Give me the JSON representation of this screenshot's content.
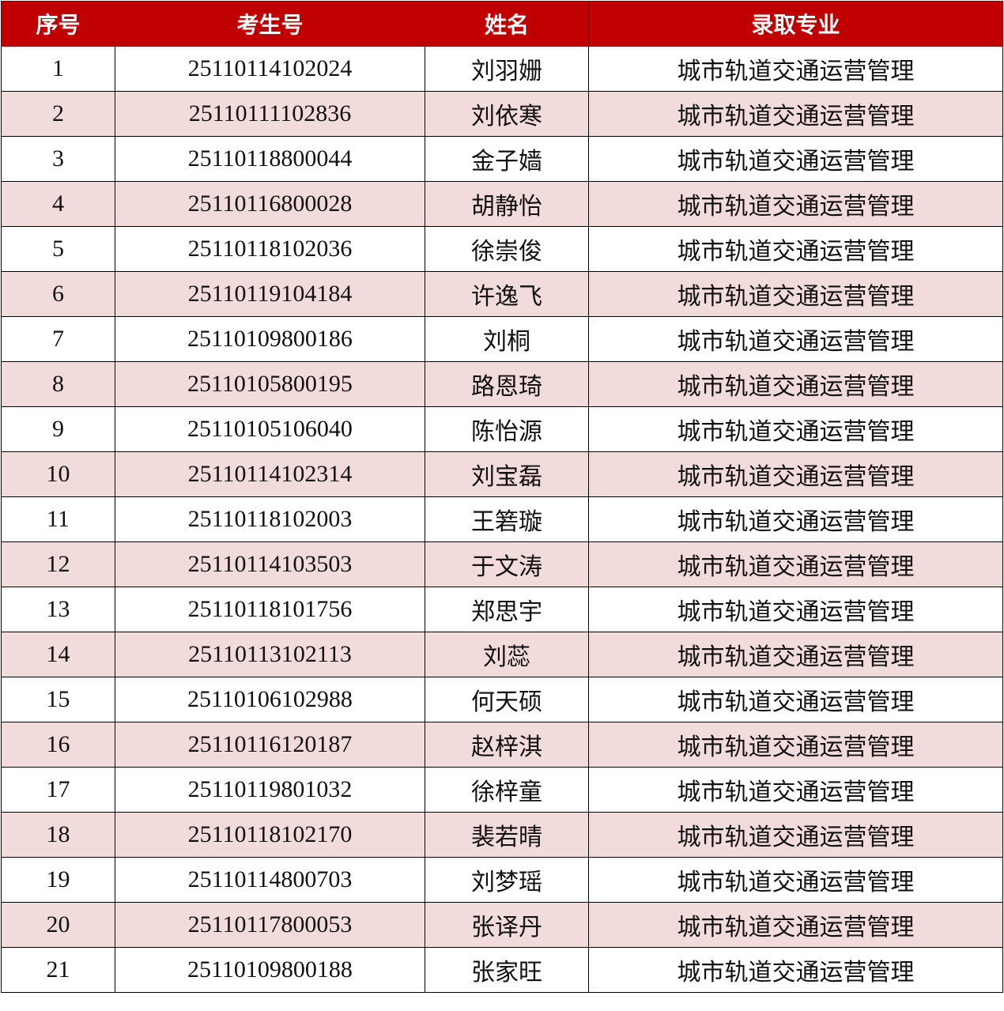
{
  "table": {
    "headers": [
      "序号",
      "考生号",
      "姓名",
      "录取专业"
    ],
    "rows": [
      {
        "no": "1",
        "id": "25110114102024",
        "name": "刘羽姗",
        "major": "城市轨道交通运营管理"
      },
      {
        "no": "2",
        "id": "25110111102836",
        "name": "刘依寒",
        "major": "城市轨道交通运营管理"
      },
      {
        "no": "3",
        "id": "25110118800044",
        "name": "金子嫱",
        "major": "城市轨道交通运营管理"
      },
      {
        "no": "4",
        "id": "25110116800028",
        "name": "胡静怡",
        "major": "城市轨道交通运营管理"
      },
      {
        "no": "5",
        "id": "25110118102036",
        "name": "徐崇俊",
        "major": "城市轨道交通运营管理"
      },
      {
        "no": "6",
        "id": "25110119104184",
        "name": "许逸飞",
        "major": "城市轨道交通运营管理"
      },
      {
        "no": "7",
        "id": "25110109800186",
        "name": "刘桐",
        "major": "城市轨道交通运营管理"
      },
      {
        "no": "8",
        "id": "25110105800195",
        "name": "路恩琦",
        "major": "城市轨道交通运营管理"
      },
      {
        "no": "9",
        "id": "25110105106040",
        "name": "陈怡源",
        "major": "城市轨道交通运营管理"
      },
      {
        "no": "10",
        "id": "25110114102314",
        "name": "刘宝磊",
        "major": "城市轨道交通运营管理"
      },
      {
        "no": "11",
        "id": "25110118102003",
        "name": "王箬璇",
        "major": "城市轨道交通运营管理"
      },
      {
        "no": "12",
        "id": "25110114103503",
        "name": "于文涛",
        "major": "城市轨道交通运营管理"
      },
      {
        "no": "13",
        "id": "25110118101756",
        "name": "郑思宇",
        "major": "城市轨道交通运营管理"
      },
      {
        "no": "14",
        "id": "25110113102113",
        "name": "刘蕊",
        "major": "城市轨道交通运营管理"
      },
      {
        "no": "15",
        "id": "25110106102988",
        "name": "何天硕",
        "major": "城市轨道交通运营管理"
      },
      {
        "no": "16",
        "id": "25110116120187",
        "name": "赵梓淇",
        "major": "城市轨道交通运营管理"
      },
      {
        "no": "17",
        "id": "25110119801032",
        "name": "徐梓童",
        "major": "城市轨道交通运营管理"
      },
      {
        "no": "18",
        "id": "25110118102170",
        "name": "裴若晴",
        "major": "城市轨道交通运营管理"
      },
      {
        "no": "19",
        "id": "25110114800703",
        "name": "刘梦瑶",
        "major": "城市轨道交通运营管理"
      },
      {
        "no": "20",
        "id": "25110117800053",
        "name": "张译丹",
        "major": "城市轨道交通运营管理"
      },
      {
        "no": "21",
        "id": "25110109800188",
        "name": "张家旺",
        "major": "城市轨道交通运营管理"
      }
    ]
  },
  "colors": {
    "header_bg": "#c00000",
    "header_text": "#ffffff",
    "stripe_bg": "#f2dcdb",
    "border": "#000000"
  }
}
